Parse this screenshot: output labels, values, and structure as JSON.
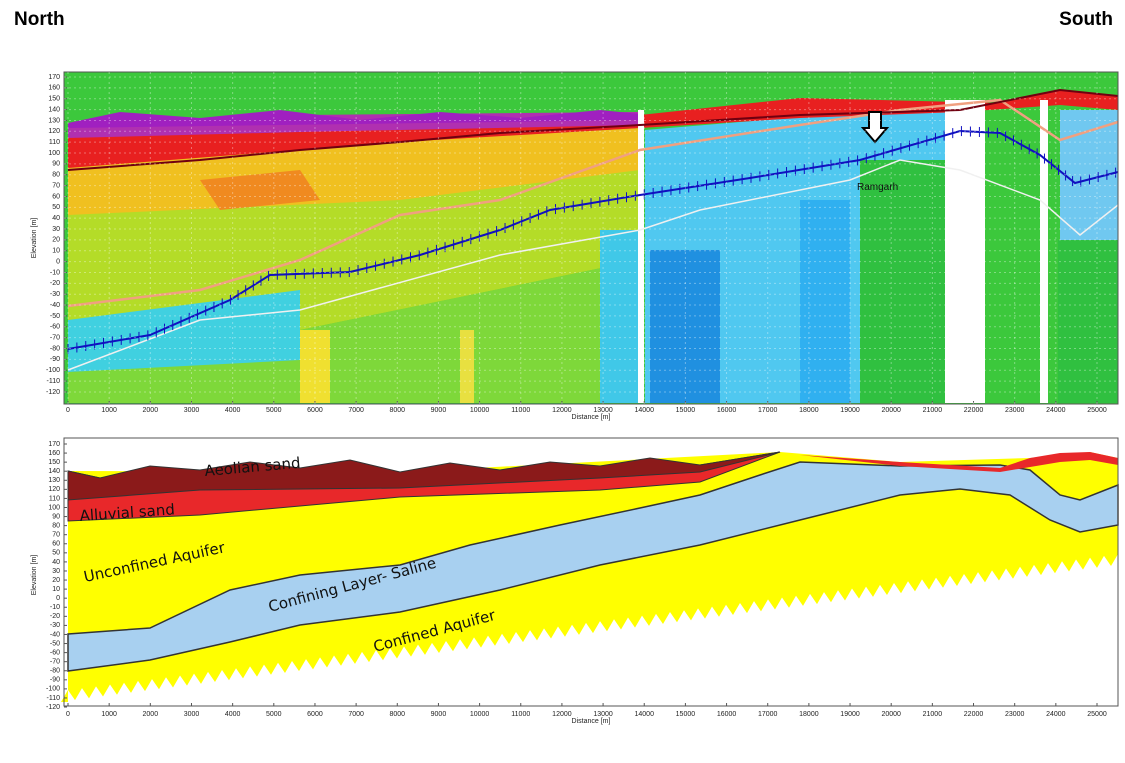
{
  "header": {
    "left": "North",
    "right": "South"
  },
  "panels": [
    {
      "ylabel": "Elevation [m]",
      "xlabel": "Distance [m]",
      "yticks": [
        170,
        160,
        150,
        140,
        130,
        120,
        110,
        100,
        90,
        80,
        70,
        60,
        50,
        40,
        30,
        20,
        10,
        0,
        -10,
        -20,
        -30,
        -40,
        -50,
        -60,
        -70,
        -80,
        -90,
        -100,
        -110,
        -120
      ],
      "xticks": [
        0,
        1000,
        2000,
        3000,
        4000,
        5000,
        6000,
        7000,
        8000,
        9000,
        10000,
        11000,
        12000,
        13000,
        14000,
        15000,
        16000,
        17000,
        18000,
        19000,
        20000,
        21000,
        22000,
        23000,
        24000,
        25000
      ],
      "annotations": [
        "Ramgarh"
      ]
    },
    {
      "ylabel": "Elevation [m]",
      "xlabel": "Distance [m]",
      "yticks": [
        170,
        160,
        150,
        140,
        130,
        120,
        110,
        100,
        90,
        80,
        70,
        60,
        50,
        40,
        30,
        20,
        10,
        0,
        -10,
        -20,
        -30,
        -40,
        -50,
        -60,
        -70,
        -80,
        -90,
        -100,
        -110,
        -120
      ],
      "xticks": [
        0,
        1000,
        2000,
        3000,
        4000,
        5000,
        6000,
        7000,
        8000,
        9000,
        10000,
        11000,
        12000,
        13000,
        14000,
        15000,
        16000,
        17000,
        18000,
        19000,
        20000,
        21000,
        22000,
        23000,
        24000,
        25000
      ],
      "annotations": [
        "Aeolian sand",
        "Alluvial sand",
        "Unconfined Aquifer",
        "Confining Layer- Saline",
        "Confined Aquifer"
      ]
    }
  ]
}
